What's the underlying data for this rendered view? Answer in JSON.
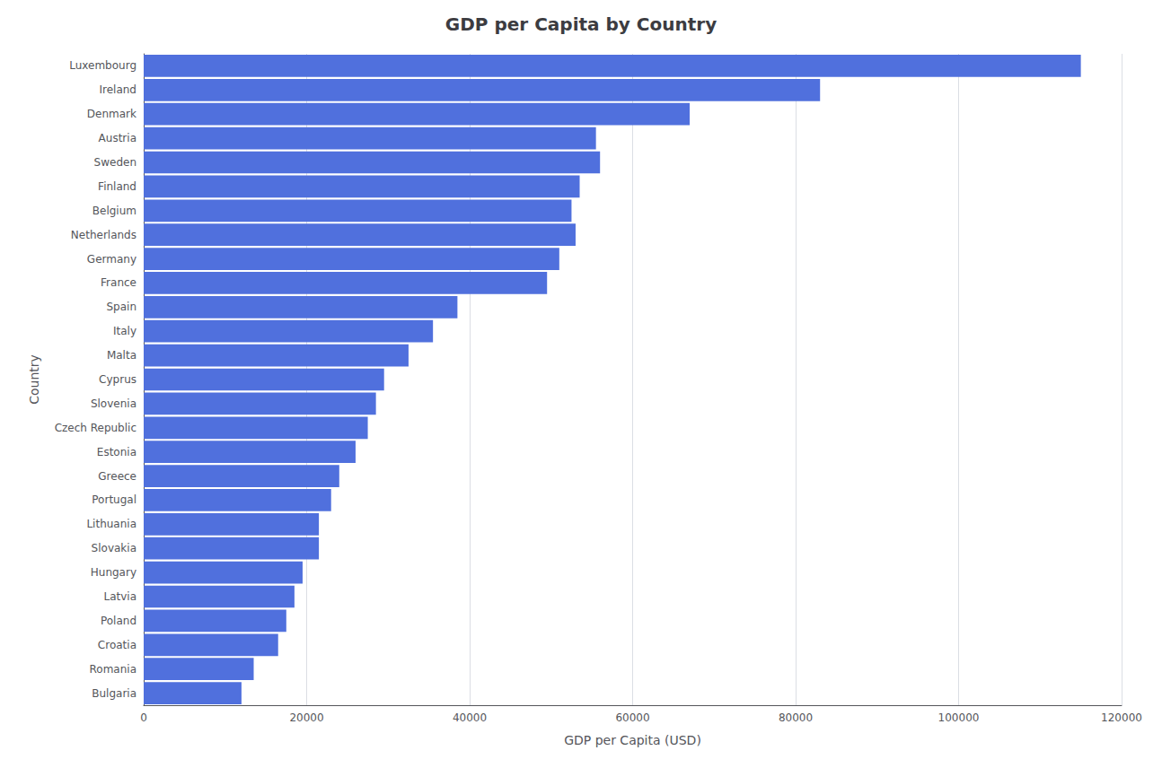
{
  "chart_data": {
    "type": "bar",
    "orientation": "horizontal",
    "title": "GDP per Capita by Country",
    "xlabel": "GDP per Capita (USD)",
    "ylabel": "Country",
    "categories": [
      "Luxembourg",
      "Ireland",
      "Denmark",
      "Austria",
      "Sweden",
      "Finland",
      "Belgium",
      "Netherlands",
      "Germany",
      "France",
      "Spain",
      "Italy",
      "Malta",
      "Cyprus",
      "Slovenia",
      "Czech Republic",
      "Estonia",
      "Greece",
      "Portugal",
      "Lithuania",
      "Slovakia",
      "Hungary",
      "Latvia",
      "Poland",
      "Croatia",
      "Romania",
      "Bulgaria"
    ],
    "values": [
      115000,
      83000,
      67000,
      55500,
      56000,
      53500,
      52500,
      53000,
      51000,
      49500,
      38500,
      35500,
      32500,
      29500,
      28500,
      27500,
      26000,
      24000,
      23000,
      21500,
      21500,
      19500,
      18500,
      17500,
      16500,
      13500,
      12000
    ],
    "xlim": [
      0,
      120000
    ],
    "xticks": [
      0,
      20000,
      40000,
      60000,
      80000,
      100000,
      120000
    ],
    "grid": true
  }
}
